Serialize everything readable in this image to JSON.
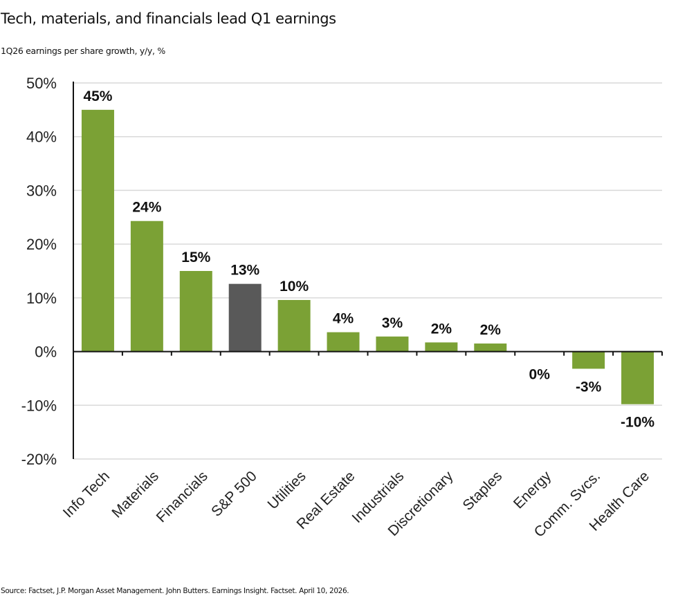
{
  "header": {
    "title": "Tech, materials, and financials lead Q1 earnings",
    "subtitle": "1Q26 earnings per share growth, y/y, %"
  },
  "footer": {
    "source": "Source: Factset, J.P. Morgan Asset Management. John Butters. Earnings Insight. Factset. April 10, 2026."
  },
  "colors": {
    "sector_bar": "#7ba135",
    "benchmark_bar": "#595959",
    "gridline": "#d9d9d9",
    "axis": "#111111"
  },
  "chart_data": {
    "type": "bar",
    "title": "Tech, materials, and financials lead Q1 earnings",
    "subtitle": "1Q26 earnings per share growth, y/y, %",
    "xlabel": "",
    "ylabel": "",
    "ylim": [
      -20,
      50
    ],
    "yticks": [
      50,
      40,
      30,
      20,
      10,
      0,
      -10,
      -20
    ],
    "ytick_labels": [
      "50%",
      "40%",
      "30%",
      "20%",
      "10%",
      "0%",
      "-10%",
      "-20%"
    ],
    "grid": true,
    "legend": "none",
    "categories": [
      "Info Tech",
      "Materials",
      "Financials",
      "S&P 500",
      "Utilities",
      "Real Estate",
      "Industrials",
      "Discretionary",
      "Staples",
      "Energy",
      "Comm. Svcs.",
      "Health Care"
    ],
    "values": [
      45.0,
      24.3,
      15.0,
      12.6,
      9.6,
      3.6,
      2.8,
      1.7,
      1.5,
      0.0,
      -3.2,
      -9.8
    ],
    "data_labels": [
      "45%",
      "24%",
      "15%",
      "13%",
      "10%",
      "4%",
      "3%",
      "2%",
      "2%",
      "0%",
      "-3%",
      "-10%"
    ],
    "highlight": [
      "S&P 500"
    ]
  }
}
